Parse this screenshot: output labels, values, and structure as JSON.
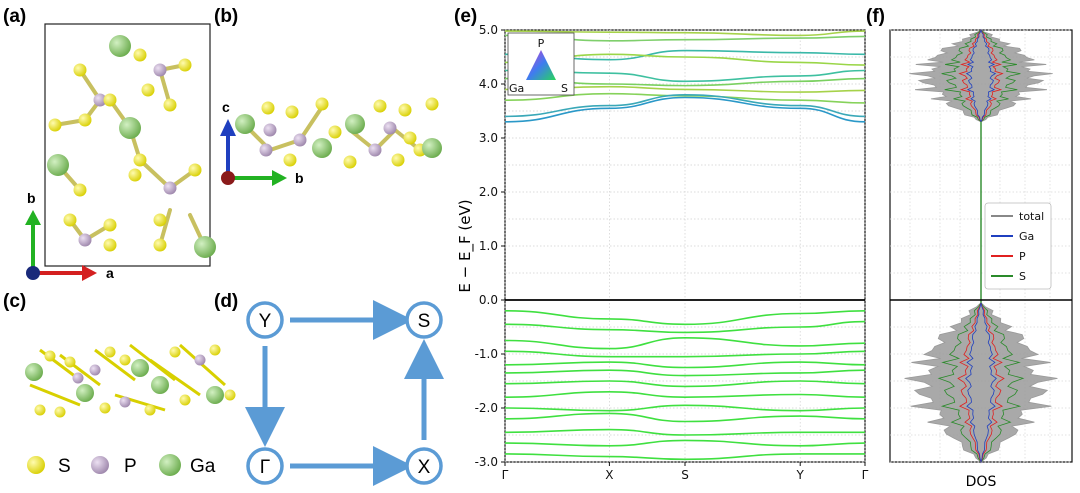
{
  "panels": {
    "a": "(a)",
    "b": "(b)",
    "c": "(c)",
    "d": "(d)",
    "e": "(e)",
    "f": "(f)"
  },
  "crystal": {
    "axis_a": "a",
    "axis_b": "b",
    "axis_c": "c",
    "legend": [
      {
        "label": "S",
        "color": "#e6e01e"
      },
      {
        "label": "P",
        "color": "#b7a4c0"
      },
      {
        "label": "Ga",
        "color": "#8fca74"
      }
    ]
  },
  "path_diagram": {
    "points": [
      "Y",
      "S",
      "Γ",
      "X"
    ],
    "arrow_color": "#5b9bd5"
  },
  "colors": {
    "S": "#e6e01e",
    "P": "#b7a4c0",
    "Ga": "#8fca74"
  },
  "chart_data": [
    {
      "type": "line",
      "title": "",
      "ylabel": "E − E_F (eV)",
      "xlabel": "",
      "x_ticks": [
        "Γ",
        "X",
        "S",
        "Y",
        "Γ"
      ],
      "ylim": [
        -3.0,
        5.0
      ],
      "y_ticks": [
        "5.0",
        "4.0",
        "3.0",
        "2.0",
        "1.0",
        "0.0",
        "-1.0",
        "-2.0",
        "-3.0"
      ],
      "grid": true,
      "colormap_legend": {
        "top": "P",
        "left": "Ga",
        "right": "S"
      },
      "conduction_bands": [
        [
          4.98,
          4.96,
          4.95,
          4.9,
          4.98
        ],
        [
          4.9,
          4.8,
          4.82,
          4.85,
          4.88
        ],
        [
          4.55,
          4.45,
          4.62,
          4.58,
          4.55
        ],
        [
          4.4,
          4.55,
          4.5,
          4.4,
          4.35
        ],
        [
          4.25,
          4.2,
          4.05,
          4.15,
          4.25
        ],
        [
          4.1,
          4.0,
          3.97,
          4.05,
          4.1
        ],
        [
          3.9,
          3.95,
          3.9,
          3.85,
          3.88
        ],
        [
          3.7,
          3.82,
          3.78,
          3.7,
          3.65
        ],
        [
          3.4,
          3.6,
          3.8,
          3.6,
          3.4
        ],
        [
          3.3,
          3.55,
          3.75,
          3.55,
          3.3
        ]
      ],
      "valence_bands": [
        [
          -0.2,
          -0.35,
          -0.45,
          -0.25,
          -0.2
        ],
        [
          -0.45,
          -0.55,
          -0.6,
          -0.5,
          -0.4
        ],
        [
          -0.75,
          -0.9,
          -0.7,
          -0.85,
          -0.8
        ],
        [
          -0.95,
          -1.05,
          -1.05,
          -1.0,
          -0.95
        ],
        [
          -1.2,
          -1.15,
          -1.25,
          -1.15,
          -1.2
        ],
        [
          -1.35,
          -1.3,
          -1.4,
          -1.35,
          -1.3
        ],
        [
          -1.55,
          -1.5,
          -1.6,
          -1.5,
          -1.55
        ],
        [
          -1.8,
          -1.7,
          -1.8,
          -1.75,
          -1.8
        ],
        [
          -2.0,
          -2.05,
          -1.95,
          -2.05,
          -2.0
        ],
        [
          -2.2,
          -2.1,
          -2.25,
          -2.15,
          -2.2
        ],
        [
          -2.45,
          -2.4,
          -2.5,
          -2.45,
          -2.45
        ],
        [
          -2.65,
          -2.7,
          -2.6,
          -2.7,
          -2.65
        ],
        [
          -2.85,
          -2.9,
          -2.95,
          -2.85,
          -2.85
        ]
      ],
      "fermi_level": 0.0
    },
    {
      "type": "area",
      "xlabel": "DOS",
      "ylim": [
        -3.0,
        5.0
      ],
      "legend": [
        "total",
        "Ga",
        "P",
        "S"
      ],
      "legend_colors": [
        "#888888",
        "#1f3fbf",
        "#e02020",
        "#2a8a2a"
      ],
      "legend_position": "right"
    }
  ]
}
